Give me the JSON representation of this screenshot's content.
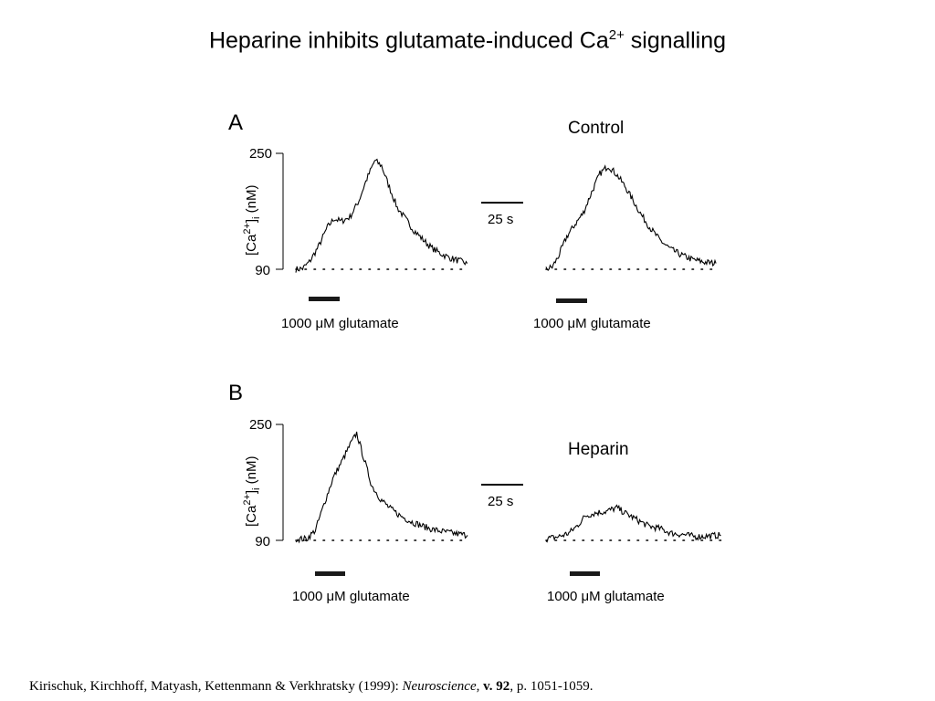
{
  "slide": {
    "title_text": "Heparine inhibits glutamate-induced Ca",
    "title_sup": "2+",
    "title_tail": " signalling"
  },
  "citation": {
    "authors": "Kirischuk, Kirchhoff, Matyash, Kettenmann & Verkhratsky (1999): ",
    "journal": "Neuroscience",
    "sep1": ", ",
    "volume": "v. 92",
    "pages": ", p. 1051-1059."
  },
  "figure": {
    "scale_bar_label": "25 s",
    "stimulus_label": "1000 μM glutamate",
    "y_label_main": "[Ca",
    "y_label_sup": "2+",
    "y_label_mid": "]",
    "y_label_sub": "i",
    "y_label_tail": " (nM)"
  },
  "chart_data": [
    {
      "type": "line",
      "panel": "A",
      "title": "",
      "ylabel": "[Ca2+]i (nM)",
      "ylim": [
        90,
        250
      ],
      "yticks": [
        250,
        90
      ],
      "scale_bar": "25 s",
      "stimulus": "1000 μM glutamate",
      "series": [
        {
          "x": [
            0,
            3,
            6,
            10,
            14,
            17,
            20,
            24,
            28,
            31,
            35,
            38,
            41,
            45,
            49,
            52,
            56,
            60,
            64,
            68,
            72,
            76
          ],
          "values": [
            90,
            91,
            100,
            121,
            148,
            160,
            156,
            162,
            185,
            211,
            240,
            233,
            207,
            175,
            158,
            145,
            132,
            120,
            112,
            106,
            102,
            98
          ]
        }
      ]
    },
    {
      "type": "line",
      "panel": "A",
      "title": "Control",
      "ylim": [
        90,
        250
      ],
      "stimulus": "1000 μM glutamate",
      "series": [
        {
          "x": [
            0,
            3,
            6,
            10,
            14,
            18,
            22,
            26,
            30,
            34,
            38,
            42,
            46,
            50,
            55,
            60,
            65,
            70,
            76,
            82
          ],
          "values": [
            90,
            93,
            108,
            135,
            152,
            168,
            196,
            222,
            233,
            221,
            205,
            185,
            165,
            148,
            130,
            118,
            110,
            104,
            100,
            98
          ]
        }
      ]
    },
    {
      "type": "line",
      "panel": "B",
      "title": "",
      "ylabel": "[Ca2+]i (nM)",
      "ylim": [
        90,
        250
      ],
      "yticks": [
        250,
        90
      ],
      "scale_bar": "25 s",
      "stimulus": "1000 μM glutamate",
      "series": [
        {
          "x": [
            0,
            5,
            9,
            13,
            17,
            21,
            25,
            28,
            31,
            35,
            39,
            43,
            48,
            53,
            58,
            63,
            68,
            74,
            79
          ],
          "values": [
            92,
            92,
            104,
            140,
            175,
            198,
            222,
            238,
            206,
            165,
            147,
            135,
            124,
            116,
            110,
            105,
            102,
            99,
            97
          ]
        }
      ]
    },
    {
      "type": "line",
      "panel": "B",
      "title": "Heparin",
      "ylim": [
        90,
        250
      ],
      "stimulus": "1000 μM glutamate",
      "series": [
        {
          "x": [
            0,
            6,
            11,
            15,
            19,
            24,
            29,
            34,
            39,
            44,
            49,
            55,
            60,
            66,
            72,
            78,
            84
          ],
          "values": [
            92,
            95,
            100,
            110,
            124,
            128,
            130,
            135,
            126,
            118,
            110,
            106,
            100,
            98,
            95,
            96,
            97
          ]
        }
      ]
    }
  ]
}
